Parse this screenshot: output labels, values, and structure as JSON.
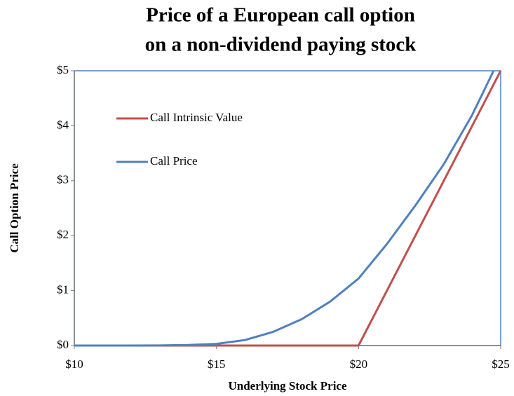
{
  "chart_data": {
    "type": "line",
    "title": [
      "Price of a European call option",
      "on a non-dividend paying stock"
    ],
    "x_label": "Underlying Stock Price",
    "y_label": "Call Option Price",
    "series": [
      {
        "name": "Call Intrinsic Value",
        "color": "#c0504d",
        "x": [
          10,
          20,
          25
        ],
        "values": [
          0,
          0,
          5
        ]
      },
      {
        "name": "Call Price",
        "color": "#4f81bd",
        "x": [
          10,
          11,
          12,
          13,
          14,
          15,
          16,
          17,
          18,
          19,
          20,
          21,
          22,
          23,
          24,
          24.75
        ],
        "values": [
          0,
          0,
          0,
          0.001,
          0.01,
          0.03,
          0.1,
          0.25,
          0.48,
          0.8,
          1.22,
          1.85,
          2.55,
          3.3,
          4.2,
          5
        ]
      }
    ],
    "xlim": [
      10,
      25
    ],
    "xticks": [
      {
        "value": 10,
        "label": "$10"
      },
      {
        "value": 15,
        "label": "$15"
      },
      {
        "value": 20,
        "label": "$20"
      },
      {
        "value": 25,
        "label": "$25"
      }
    ],
    "ylim": [
      0,
      5
    ],
    "yticks": [
      {
        "value": 0,
        "label": "$0"
      },
      {
        "value": 1,
        "label": "$1"
      },
      {
        "value": 2,
        "label": "$2"
      },
      {
        "value": 3,
        "label": "$3"
      },
      {
        "value": 4,
        "label": "$4"
      },
      {
        "value": 5,
        "label": "$5"
      }
    ],
    "grid": false,
    "legend": "upper left"
  }
}
